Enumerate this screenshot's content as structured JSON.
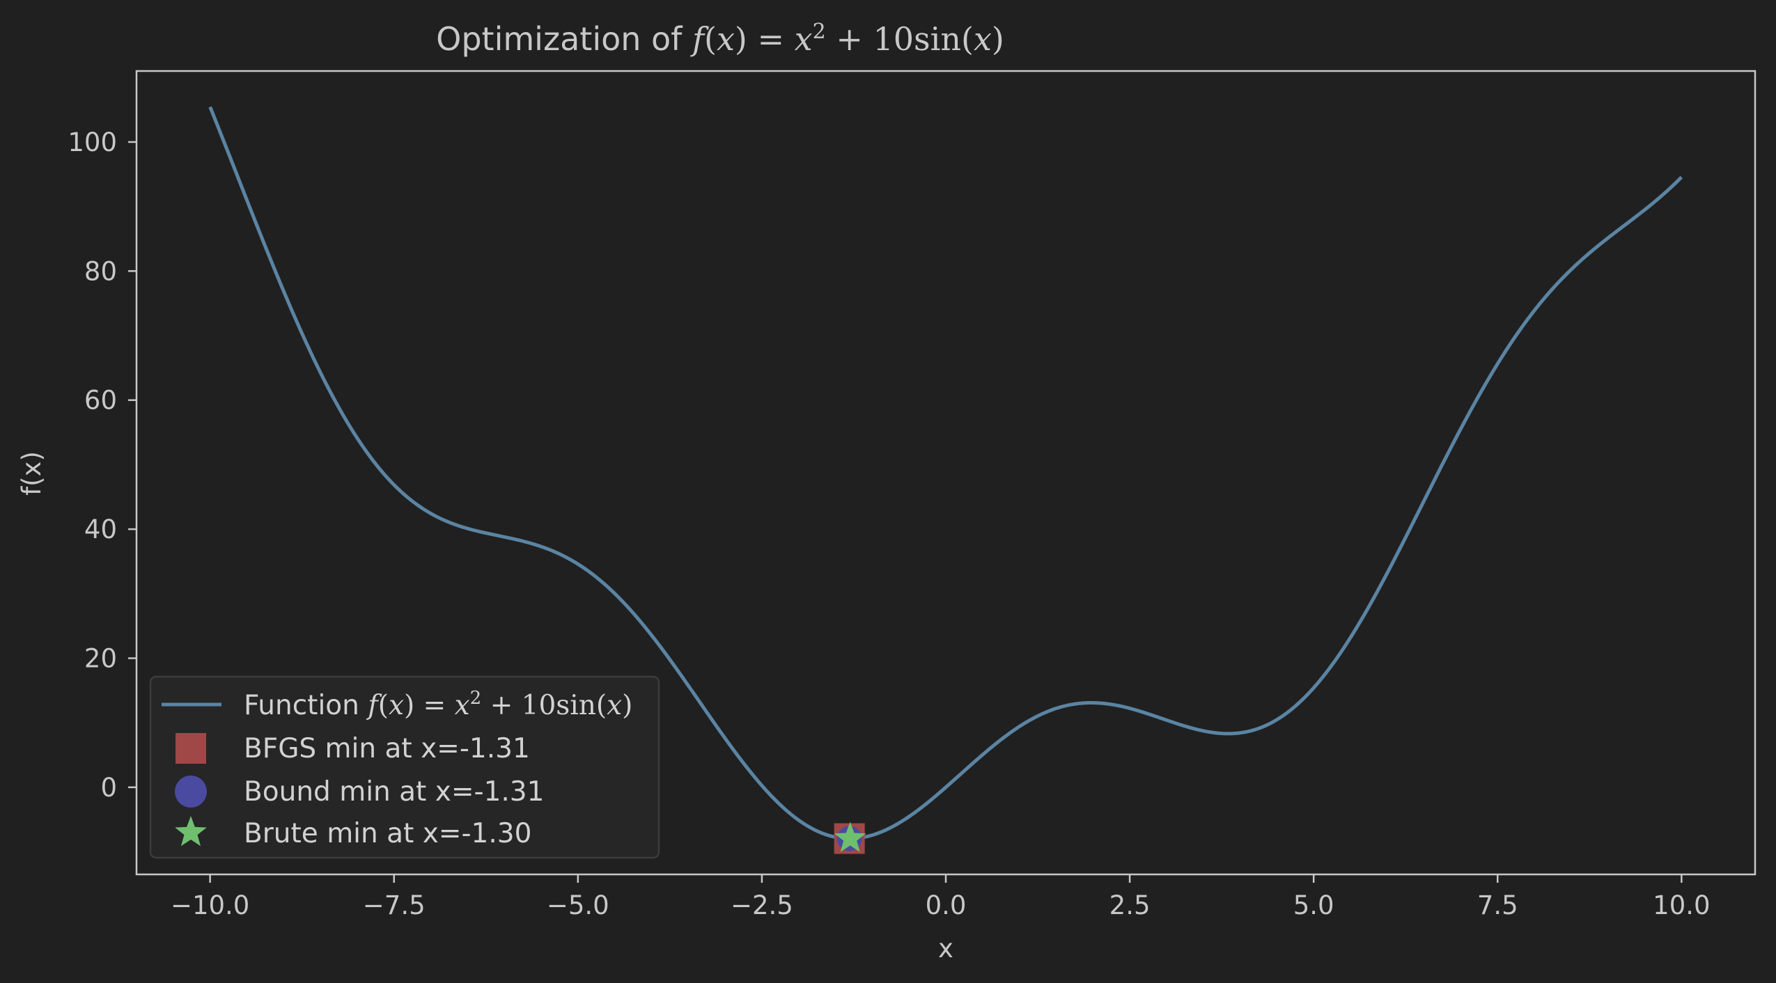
{
  "chart_data": {
    "type": "line",
    "title": "Optimization of f(x) = x² + 10sin(x)",
    "title_parts": {
      "prefix": "Optimization of ",
      "f": "f",
      "lp": "(",
      "x1": "x",
      "rp_eq": ") = ",
      "x2": "x",
      "exp": "2",
      "plus": " + 10",
      "sin": "sin",
      "lp2": "(",
      "x3": "x",
      "rp2": ")"
    },
    "xlabel": "x",
    "ylabel": "f(x)",
    "xlim": [
      -11.0,
      11.0
    ],
    "ylim": [
      -13.5,
      111.0
    ],
    "x_ticks": [
      -10.0,
      -7.5,
      -5.0,
      -2.5,
      0.0,
      2.5,
      5.0,
      7.5,
      10.0
    ],
    "x_tick_labels": [
      "−10.0",
      "−7.5",
      "−5.0",
      "−2.5",
      "0.0",
      "2.5",
      "5.0",
      "7.5",
      "10.0"
    ],
    "y_ticks": [
      0,
      20,
      40,
      60,
      80,
      100
    ],
    "y_tick_labels": [
      "0",
      "20",
      "40",
      "60",
      "80",
      "100"
    ],
    "grid": false,
    "legend_position": "lower-left",
    "series": [
      {
        "name": "Function f(x) = x² + 10sin(x)",
        "kind": "line",
        "color": "#5b84a3",
        "function": "x^2 + 10*sin(x)",
        "x_range": [
          -10,
          10
        ],
        "samples": [
          [
            -10.0,
            105.44
          ],
          [
            -9.0,
            76.88
          ],
          [
            -8.0,
            54.11
          ],
          [
            -7.0,
            42.43
          ],
          [
            -6.0,
            38.79
          ],
          [
            -5.0,
            34.59
          ],
          [
            -4.0,
            23.57
          ],
          [
            -3.0,
            7.59
          ],
          [
            -2.0,
            -5.09
          ],
          [
            -1.31,
            -7.95
          ],
          [
            -1.0,
            -7.41
          ],
          [
            0.0,
            0.0
          ],
          [
            1.0,
            9.41
          ],
          [
            2.0,
            13.09
          ],
          [
            3.0,
            10.41
          ],
          [
            3.84,
            8.32
          ],
          [
            4.0,
            8.43
          ],
          [
            5.0,
            15.41
          ],
          [
            6.0,
            33.21
          ],
          [
            7.0,
            55.57
          ],
          [
            8.0,
            73.89
          ],
          [
            9.0,
            85.12
          ],
          [
            10.0,
            94.56
          ]
        ]
      },
      {
        "name": "BFGS min at x=-1.31",
        "kind": "marker",
        "marker": "square",
        "color": "#a04848",
        "x": -1.31,
        "y": -7.95
      },
      {
        "name": "Bound min at x=-1.31",
        "kind": "marker",
        "marker": "circle",
        "color": "#4a4aa0",
        "x": -1.31,
        "y": -7.95
      },
      {
        "name": "Brute min at x=-1.30",
        "kind": "marker",
        "marker": "star",
        "color": "#6fbf6f",
        "x": -1.3,
        "y": -7.95
      }
    ],
    "legend": {
      "line_label_prefix": "Function ",
      "items": [
        "BFGS min at x=-1.31",
        "Bound min at x=-1.31",
        "Brute min at x=-1.30"
      ]
    }
  }
}
